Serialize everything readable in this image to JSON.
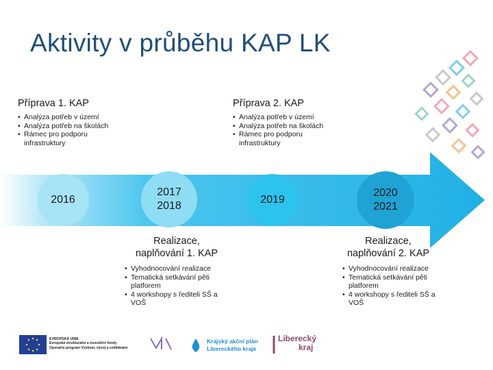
{
  "title": "Aktivity v průběhu KAP LK",
  "prep1": {
    "heading": "Příprava 1. KAP",
    "bullets": [
      "Analýza potřeb v území",
      "Analýza potřeb na školách",
      "Rámec pro podporu infrastruktury"
    ]
  },
  "prep2": {
    "heading": "Příprava 2. KAP",
    "bullets": [
      "Analýza potřeb v území",
      "Analýza potřeb na školách",
      "Rámec pro podporu infrastruktury"
    ]
  },
  "years": {
    "y2016": "2016",
    "y2017_2018": "2017\n2018",
    "y2019": "2019",
    "y2020_2021": "2020\n2021"
  },
  "impl1": {
    "heading": "Realizace,\nnaplňování 1. KAP",
    "bullets": [
      "Vyhodnocování realizace",
      "Tematická setkávání pěti platforem",
      "4 workshopy s řediteli SŠ a VOŠ"
    ]
  },
  "impl2": {
    "heading": "Realizace,\nnaplňování 2. KAP",
    "bullets": [
      "Vyhodnocování realizace",
      "Tematická setkávání pěti platforem",
      "4 workshopy s řediteli SŠ a VOŠ"
    ]
  },
  "logos": {
    "eu_line1": "EVROPSKÁ UNIE",
    "eu_line2": "Evropské strukturální a investiční fondy",
    "eu_line3": "Operační program Výzkum, vývoj a vzdělávání",
    "kap_line1": "Krajský akční plán",
    "kap_line2": "Libereckého kraje",
    "lk_line1": "Liberecký",
    "lk_line2": "kraj"
  },
  "colors": {
    "arrow": "#29b6e8",
    "circle_light": "#a8e4f7",
    "circle_mid": "#2cc3ec",
    "circle_dark": "#1fa3d5",
    "title": "#1f4e79"
  }
}
